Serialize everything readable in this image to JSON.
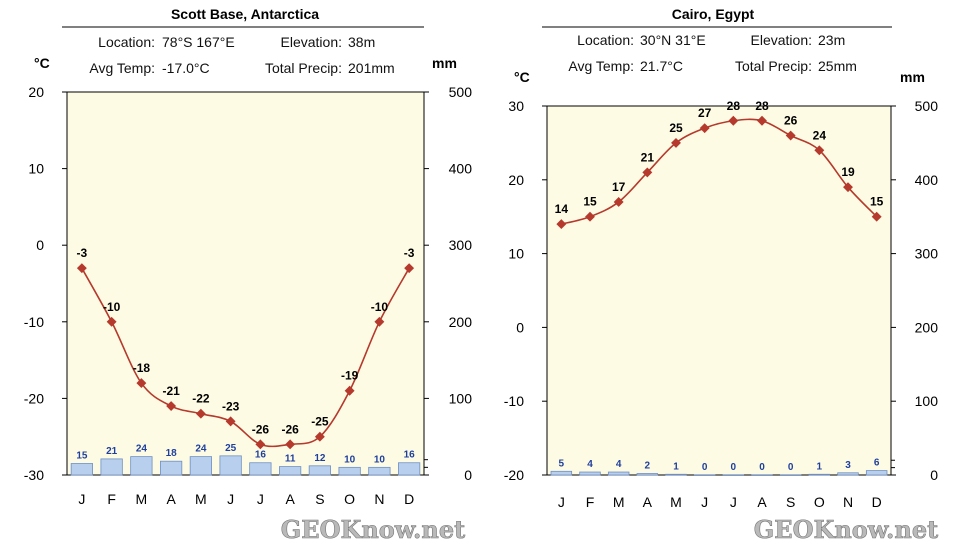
{
  "chart_data": [
    {
      "type": "line",
      "title": "Scott Base, Antarctica",
      "info": {
        "location_label": "Location:",
        "location_value": "78°S 167°E",
        "elevation_label": "Elevation:",
        "elevation_value": "38m",
        "avg_temp_label": "Avg Temp:",
        "avg_temp_value": "-17.0°C",
        "precip_label": "Total Precip:",
        "precip_value": "201mm"
      },
      "ylabel_left": "°C",
      "ylabel_right": "mm",
      "categories": [
        "J",
        "F",
        "M",
        "A",
        "M",
        "J",
        "J",
        "A",
        "S",
        "O",
        "N",
        "D"
      ],
      "temp_ylim": [
        -30,
        20
      ],
      "temp_ticks": [
        "20",
        "10",
        "0",
        "-10",
        "-20",
        "-30"
      ],
      "precip_ylim": [
        0,
        500
      ],
      "precip_ticks": [
        "500",
        "400",
        "300",
        "200",
        "100",
        "0"
      ],
      "series": [
        {
          "values": [
            -3,
            -10,
            -18,
            -21,
            -22,
            -23,
            -26,
            -26,
            -25,
            -19,
            -10,
            -3
          ],
          "labels": [
            "-3",
            "-10",
            "-18",
            "-21",
            "-22",
            "-23",
            "-26",
            "-26",
            "-25",
            "-19",
            "-10",
            "-3"
          ]
        },
        {
          "values": [
            15,
            21,
            24,
            18,
            24,
            25,
            16,
            11,
            12,
            10,
            10,
            16
          ],
          "labels": [
            "15",
            "21",
            "24",
            "18",
            "24",
            "25",
            "16",
            "11",
            "12",
            "10",
            "10",
            "16"
          ]
        }
      ],
      "watermark": "GEOKnow.net",
      "colors": {
        "temp": "#b5392c",
        "precip_fill": "#b8d0ee",
        "precip_stroke": "#6f8fc4",
        "plot_bg": "#fdfbe3"
      }
    },
    {
      "type": "line",
      "title": "Cairo, Egypt",
      "info": {
        "location_label": "Location:",
        "location_value": "30°N 31°E",
        "elevation_label": "Elevation:",
        "elevation_value": "23m",
        "avg_temp_label": "Avg Temp:",
        "avg_temp_value": "21.7°C",
        "precip_label": "Total Precip:",
        "precip_value": "25mm"
      },
      "ylabel_left": "°C",
      "ylabel_right": "mm",
      "categories": [
        "J",
        "F",
        "M",
        "A",
        "M",
        "J",
        "J",
        "A",
        "S",
        "O",
        "N",
        "D"
      ],
      "temp_ylim": [
        -20,
        30
      ],
      "temp_ticks": [
        "30",
        "20",
        "10",
        "0",
        "-10",
        "-20"
      ],
      "precip_ylim": [
        0,
        500
      ],
      "precip_ticks": [
        "500",
        "400",
        "300",
        "200",
        "100",
        "0"
      ],
      "series": [
        {
          "values": [
            14,
            15,
            17,
            21,
            25,
            27,
            28,
            28,
            26,
            24,
            19,
            15
          ],
          "labels": [
            "14",
            "15",
            "17",
            "21",
            "25",
            "27",
            "28",
            "28",
            "26",
            "24",
            "19",
            "15"
          ]
        },
        {
          "values": [
            5,
            4,
            4,
            2,
            1,
            0,
            0,
            0,
            0,
            1,
            3,
            6
          ],
          "labels": [
            "5",
            "4",
            "4",
            "2",
            "1",
            "0",
            "0",
            "0",
            "0",
            "1",
            "3",
            "6"
          ]
        }
      ],
      "watermark": "GEOKnow.net",
      "colors": {
        "temp": "#b5392c",
        "precip_fill": "#b8d0ee",
        "precip_stroke": "#6f8fc4",
        "plot_bg": "#fdfbe3"
      }
    }
  ]
}
